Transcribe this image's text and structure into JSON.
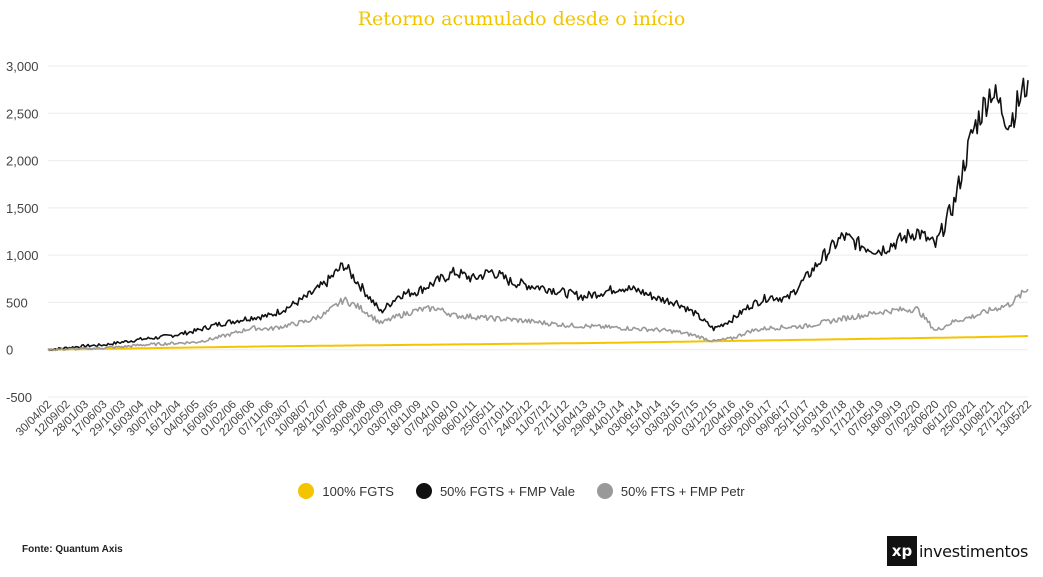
{
  "chart_data": {
    "type": "line",
    "title": "Retorno acumulado desde o início",
    "xlabel": "",
    "ylabel": "",
    "ylim": [
      -500,
      3000
    ],
    "y_ticks": [
      {
        "value": 3000,
        "label": "3,000"
      },
      {
        "value": 2500,
        "label": "2,500"
      },
      {
        "value": 2000,
        "label": "2,000"
      },
      {
        "value": 1500,
        "label": "1,500"
      },
      {
        "value": 1000,
        "label": "1,000"
      },
      {
        "value": 500,
        "label": "500"
      },
      {
        "value": 0,
        "label": "0"
      },
      {
        "value": -500,
        "label": "-500"
      }
    ],
    "x_tick_labels": [
      "30/04/02",
      "12/09/02",
      "28/01/03",
      "17/06/03",
      "29/10/03",
      "16/03/04",
      "30/07/04",
      "16/12/04",
      "04/05/05",
      "16/09/05",
      "01/02/06",
      "22/06/06",
      "07/11/06",
      "27/03/07",
      "10/08/07",
      "28/12/07",
      "19/05/08",
      "30/09/08",
      "12/02/09",
      "03/07/09",
      "18/11/09",
      "07/04/10",
      "20/08/10",
      "06/01/11",
      "25/05/11",
      "07/10/11",
      "24/02/12",
      "11/07/12",
      "27/11/12",
      "16/04/13",
      "29/08/13",
      "14/01/14",
      "03/06/14",
      "15/10/14",
      "03/03/15",
      "20/07/15",
      "03/12/15",
      "22/04/16",
      "05/09/16",
      "20/01/17",
      "09/06/17",
      "25/10/17",
      "15/03/18",
      "31/07/18",
      "17/12/18",
      "07/05/19",
      "18/09/19",
      "07/02/20",
      "23/06/20",
      "06/11/20",
      "25/03/21",
      "10/08/21",
      "27/12/21",
      "13/05/22"
    ],
    "series": [
      {
        "name": "100% FGTS",
        "color": "#f5c400",
        "values": [
          0,
          3,
          6,
          9,
          12,
          15,
          18,
          21,
          24,
          27,
          30,
          33,
          36,
          38,
          40,
          42,
          44,
          46,
          48,
          50,
          52,
          54,
          56,
          58,
          60,
          62,
          64,
          66,
          68,
          70,
          72,
          75,
          78,
          81,
          84,
          87,
          90,
          93,
          96,
          99,
          102,
          105,
          108,
          111,
          114,
          117,
          120,
          123,
          126,
          129,
          132,
          136,
          140,
          145
        ]
      },
      {
        "name": "50% FGTS + FMP Vale",
        "color": "#111111",
        "values": [
          0,
          20,
          40,
          50,
          80,
          110,
          130,
          160,
          200,
          260,
          300,
          340,
          360,
          450,
          560,
          700,
          900,
          650,
          400,
          580,
          620,
          720,
          820,
          750,
          830,
          720,
          680,
          650,
          600,
          560,
          610,
          660,
          620,
          540,
          500,
          380,
          220,
          320,
          470,
          560,
          540,
          760,
          1000,
          1200,
          1100,
          1050,
          1150,
          1250,
          1100,
          1550,
          2300,
          2750,
          2400,
          2850
        ]
      },
      {
        "name": "50% FTS + FMP Petr",
        "color": "#999999",
        "values": [
          0,
          5,
          10,
          20,
          30,
          50,
          60,
          70,
          80,
          120,
          170,
          230,
          220,
          260,
          300,
          380,
          530,
          430,
          280,
          360,
          420,
          440,
          360,
          350,
          330,
          320,
          300,
          280,
          260,
          250,
          240,
          230,
          220,
          210,
          190,
          150,
          90,
          120,
          200,
          230,
          240,
          250,
          290,
          330,
          360,
          400,
          420,
          430,
          200,
          300,
          350,
          420,
          480,
          640
        ]
      }
    ]
  },
  "legend": {
    "items": [
      {
        "label": "100% FGTS",
        "color": "#f5c400"
      },
      {
        "label": "50% FGTS + FMP Vale",
        "color": "#111111"
      },
      {
        "label": "50% FTS + FMP Petr",
        "color": "#999999"
      }
    ]
  },
  "footer": {
    "source": "Fonte: Quantum Axis",
    "logo_mark": "xp",
    "logo_word": "investimentos"
  }
}
